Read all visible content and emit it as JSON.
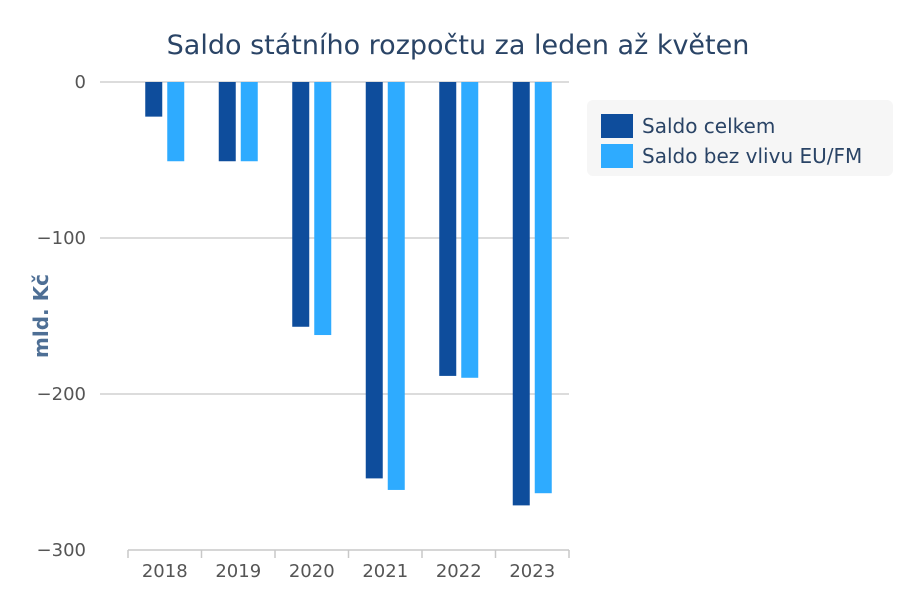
{
  "chart_data": {
    "type": "bar",
    "title": "Saldo státního rozpočtu za leden až květen",
    "ylabel": "mld. Kč",
    "xlabel": "",
    "categories": [
      "2018",
      "2019",
      "2020",
      "2021",
      "2022",
      "2023"
    ],
    "series": [
      {
        "name": "Saldo celkem",
        "color": "#0e4d9c",
        "values": [
          -22.2,
          -50.8,
          -156.9,
          -254.1,
          -188.4,
          -271.4
        ]
      },
      {
        "name": "Saldo bez vlivu EU/FM",
        "color": "#2eabff",
        "values": [
          -50.8,
          -50.8,
          -162.2,
          -261.5,
          -189.6,
          -263.6
        ]
      }
    ],
    "ylim": [
      -300,
      0
    ],
    "yticks": [
      0,
      -100,
      -200,
      -300
    ],
    "ytick_labels": [
      "0",
      "−100",
      "−200",
      "−300"
    ],
    "grid": true,
    "legend_position": "right"
  }
}
